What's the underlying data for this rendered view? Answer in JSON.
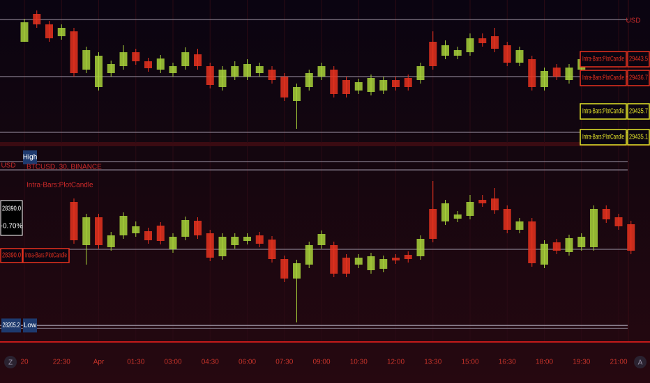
{
  "chart_data": [
    {
      "type": "candlestick",
      "currency": "USD",
      "ylim": [
        28310,
        28720
      ],
      "up_color": "#a8d23a",
      "down_color": "#e8321f",
      "hlines": [
        28664,
        28500,
        28340
      ],
      "open": [
        28600,
        28680,
        28650,
        28616,
        28630,
        28520,
        28470,
        28510,
        28530,
        28570,
        28544,
        28520,
        28510,
        28530,
        28564,
        28530,
        28470,
        28500,
        28500,
        28510,
        28520,
        28500,
        28430,
        28470,
        28500,
        28520,
        28490,
        28460,
        28456,
        28460,
        28490,
        28496,
        28490,
        28600,
        28560,
        28560,
        28570,
        28610,
        28616,
        28590,
        28540,
        28550,
        28470,
        28526,
        28490,
        28520,
        null,
        null,
        null,
        null
      ],
      "high": [
        28666,
        28690,
        28660,
        28650,
        28640,
        28586,
        28570,
        28546,
        28590,
        28580,
        28554,
        28562,
        28540,
        28584,
        28580,
        28540,
        28530,
        28544,
        28550,
        28540,
        28530,
        28510,
        28480,
        28520,
        28540,
        28530,
        28500,
        28494,
        28506,
        28500,
        28500,
        28506,
        28540,
        28630,
        28604,
        28586,
        28624,
        28624,
        28640,
        28600,
        28586,
        28560,
        28526,
        28536,
        28536,
        28560,
        null,
        null,
        null,
        null
      ],
      "low": [
        28600,
        28640,
        28600,
        28606,
        28500,
        28510,
        28460,
        28500,
        28520,
        28534,
        28514,
        28510,
        28500,
        28520,
        28520,
        28466,
        28460,
        28490,
        28490,
        28500,
        28480,
        28430,
        28350,
        28460,
        28490,
        28440,
        28440,
        28450,
        28446,
        28450,
        28460,
        28460,
        28480,
        28520,
        28550,
        28550,
        28560,
        28586,
        28570,
        28530,
        28530,
        28460,
        28460,
        28490,
        28480,
        28510,
        null,
        null,
        null,
        null
      ],
      "close": [
        28656,
        28650,
        28610,
        28640,
        28510,
        28576,
        28560,
        28536,
        28570,
        28544,
        28524,
        28552,
        28530,
        28570,
        28530,
        28476,
        28520,
        28530,
        28536,
        28530,
        28490,
        28440,
        28470,
        28510,
        28530,
        28450,
        28450,
        28484,
        28496,
        28490,
        28470,
        28470,
        28530,
        28530,
        28590,
        28576,
        28610,
        28596,
        28580,
        28540,
        28576,
        28470,
        28516,
        28500,
        28526,
        28550,
        null,
        null,
        null,
        null
      ],
      "legend": [
        {
          "name": "Intra-Bars:PlotCandle",
          "value": 29443.5,
          "color": "#e8321f"
        },
        {
          "name": "Intra-Bars:PlotCandle",
          "value": 29436.7,
          "color": "#e8321f"
        },
        {
          "name": "Intra-Bars:PlotCandle",
          "value": 29435.7,
          "color": "#e6e62a"
        },
        {
          "name": "Intra-Bars:PlotCandle",
          "value": 29435.1,
          "color": "#e6e62a"
        }
      ]
    },
    {
      "type": "candlestick",
      "currency": "USD",
      "symbol": "BTCUSD, 30, BINANCE",
      "indicator": "Intra-Bars:PlotCandle",
      "ylim": [
        28160,
        28720
      ],
      "up_color": "#a8d23a",
      "down_color": "#e8321f",
      "hlines": [
        28676,
        28652,
        28424
      ],
      "categories": [
        "20",
        null,
        null,
        "22:30",
        null,
        null,
        "Apr",
        null,
        null,
        "01:30",
        null,
        null,
        "03:00",
        null,
        null,
        "04:30",
        null,
        null,
        "06:00",
        null,
        null,
        "07:30",
        null,
        null,
        "09:00",
        null,
        null,
        "10:30",
        null,
        null,
        "12:00",
        null,
        null,
        "13:30",
        null,
        null,
        "15:00",
        null,
        null,
        "16:30",
        null,
        null,
        "18:00",
        null,
        null,
        "19:30",
        null,
        null,
        "21:00",
        null
      ],
      "open": [
        null,
        null,
        null,
        null,
        28560,
        28436,
        28516,
        28430,
        28464,
        28470,
        28476,
        28492,
        28424,
        28460,
        28506,
        28470,
        28404,
        28436,
        28448,
        28464,
        28452,
        28396,
        28340,
        28380,
        28436,
        28436,
        28400,
        28380,
        28364,
        28368,
        28400,
        28408,
        28404,
        28540,
        28504,
        28512,
        28520,
        28566,
        28570,
        28540,
        28480,
        28504,
        28380,
        28444,
        28416,
        28430,
        28430,
        28540,
        28516,
        28496
      ],
      "high": [
        null,
        null,
        null,
        null,
        28570,
        28526,
        28526,
        28474,
        28530,
        28504,
        28486,
        28502,
        28470,
        28518,
        28516,
        28480,
        28470,
        28470,
        28470,
        28474,
        28462,
        28406,
        28394,
        28446,
        28478,
        28446,
        28410,
        28410,
        28414,
        28406,
        28410,
        28418,
        28464,
        28620,
        28566,
        28534,
        28580,
        28580,
        28600,
        28550,
        28514,
        28514,
        28450,
        28454,
        28466,
        28470,
        28550,
        28550,
        28526,
        28506
      ],
      "low": [
        null,
        null,
        null,
        null,
        28440,
        28380,
        28426,
        28420,
        28454,
        28460,
        28440,
        28438,
        28414,
        28450,
        28454,
        28390,
        28394,
        28426,
        28438,
        28430,
        28386,
        28330,
        28214,
        28370,
        28426,
        28344,
        28344,
        28370,
        28354,
        28358,
        28382,
        28386,
        28394,
        28444,
        28494,
        28502,
        28510,
        28546,
        28526,
        28470,
        28470,
        28374,
        28370,
        28410,
        28406,
        28420,
        28420,
        28500,
        28480,
        28410
      ],
      "close": [
        null,
        null,
        null,
        null,
        28450,
        28516,
        28436,
        28464,
        28520,
        28490,
        28450,
        28448,
        28460,
        28508,
        28464,
        28400,
        28460,
        28460,
        28460,
        28440,
        28396,
        28340,
        28384,
        28436,
        28468,
        28354,
        28354,
        28400,
        28404,
        28396,
        28392,
        28396,
        28454,
        28454,
        28556,
        28524,
        28560,
        28556,
        28536,
        28480,
        28504,
        28384,
        28440,
        28420,
        28456,
        28460,
        28540,
        28510,
        28490,
        28420
      ],
      "high_label": "High",
      "low_label": "Low",
      "low_value": 28205.2,
      "last_price": {
        "value": 28390,
        "label": "28390.0"
      },
      "change": {
        "value": -0.7,
        "label": "-0.70%"
      },
      "indicator_value": {
        "value": 28390,
        "label": "28390.0"
      }
    }
  ],
  "toolbar": {
    "left": "Z",
    "right": "A"
  }
}
